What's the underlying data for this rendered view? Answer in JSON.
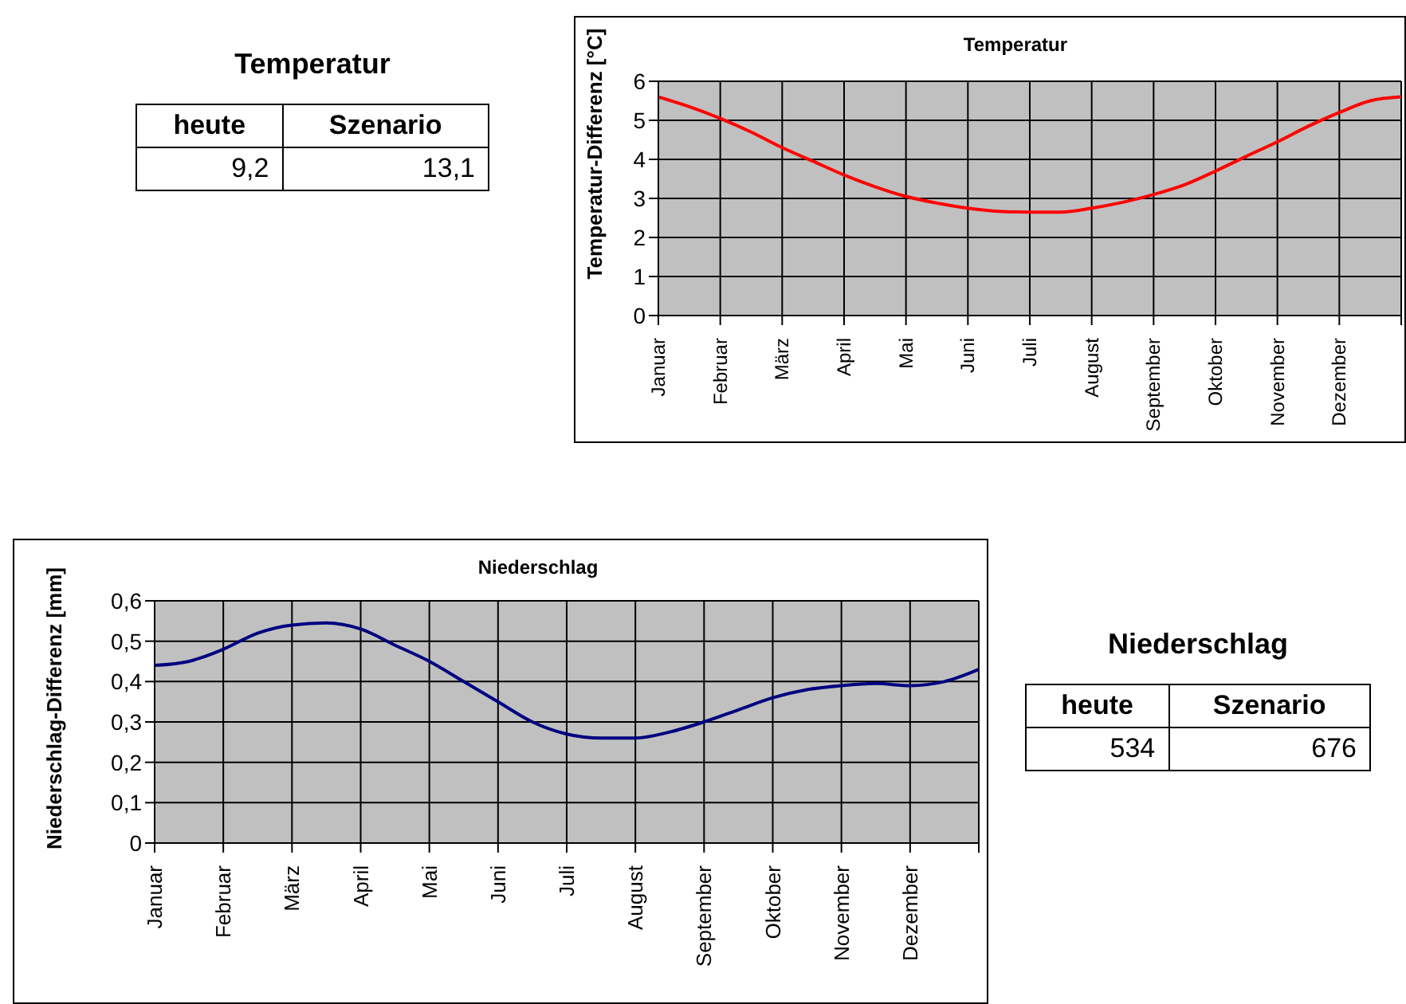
{
  "chart_data": [
    {
      "type": "other",
      "title": "Temperatur",
      "categories": [
        "heute",
        "Szenario"
      ],
      "value_labels": [
        "9,2",
        "13,1"
      ]
    },
    {
      "type": "line",
      "title": "Temperatur",
      "ylabel": "Temperatur-Differenz  [°C]",
      "categories": [
        "Januar",
        null,
        "Februar",
        null,
        "März",
        null,
        "April",
        null,
        "Mai",
        null,
        "Juni",
        null,
        "Juli",
        null,
        "August",
        null,
        "September",
        null,
        "Oktober",
        null,
        "November",
        null,
        "Dezember",
        null,
        null
      ],
      "series": [
        {
          "color": "#ff0000",
          "values": [
            5.6,
            5.35,
            5.05,
            4.7,
            4.3,
            3.95,
            3.6,
            3.3,
            3.05,
            2.88,
            2.75,
            2.67,
            2.65,
            2.65,
            2.75,
            2.9,
            3.1,
            3.35,
            3.7,
            4.08,
            4.45,
            4.85,
            5.2,
            5.5,
            5.6
          ]
        }
      ],
      "ylim": [
        0,
        6
      ],
      "yticks": [
        0,
        1,
        2,
        3,
        4,
        5,
        6
      ],
      "grid": true,
      "marker": "none",
      "line_style": "solid",
      "legend": false
    },
    {
      "type": "line",
      "title": "Niederschlag",
      "ylabel": "Niederschlag-Differenz [mm]",
      "categories": [
        "Januar",
        null,
        "Februar",
        null,
        "März",
        null,
        "April",
        null,
        "Mai",
        null,
        "Juni",
        null,
        "Juli",
        null,
        "August",
        null,
        "September",
        null,
        "Oktober",
        null,
        "November",
        null,
        "Dezember",
        null,
        null
      ],
      "series": [
        {
          "color": "#000080",
          "values": [
            0.44,
            0.45,
            0.48,
            0.52,
            0.54,
            0.545,
            0.53,
            0.49,
            0.45,
            0.4,
            0.35,
            0.3,
            0.27,
            0.26,
            0.26,
            0.275,
            0.3,
            0.33,
            0.36,
            0.38,
            0.39,
            0.395,
            0.39,
            0.4,
            0.43
          ]
        }
      ],
      "ylim": [
        0,
        0.6
      ],
      "yticks": [
        0,
        {
          "value": 0.1,
          "label": "0,1"
        },
        {
          "value": 0.2,
          "label": "0,2"
        },
        {
          "value": 0.3,
          "label": "0,3"
        },
        {
          "value": 0.4,
          "label": "0,4"
        },
        {
          "value": 0.5,
          "label": "0,5"
        },
        {
          "value": 0.6,
          "label": "0,6"
        }
      ],
      "grid": true,
      "marker": "none",
      "line_style": "solid",
      "legend": false
    },
    {
      "type": "other",
      "title": "Niederschlag",
      "categories": [
        "heute",
        "Szenario"
      ],
      "value_labels": [
        "534",
        "676"
      ]
    }
  ]
}
